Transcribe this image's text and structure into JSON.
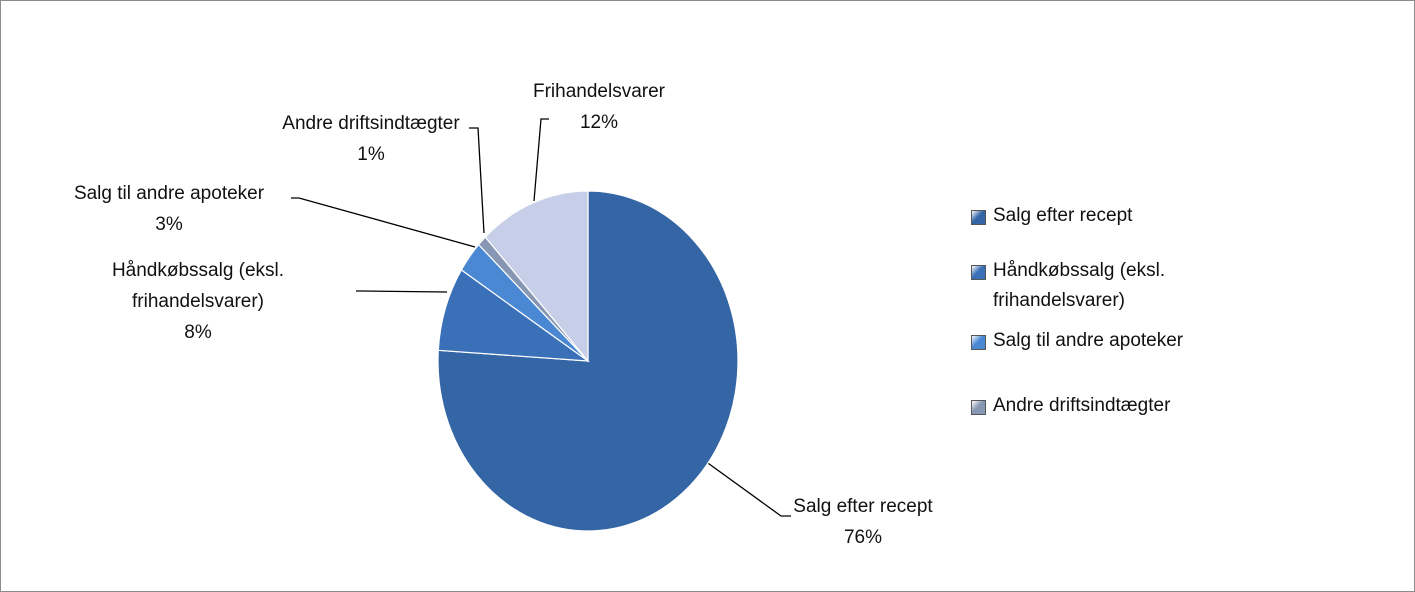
{
  "chart_data": {
    "type": "pie",
    "categories": [
      "Salg efter recept",
      "Håndkøbssalg (eksl. frihandelsvarer)",
      "Salg til andre apoteker",
      "Andre driftsindtægter",
      "Frihandelsvarer"
    ],
    "values": [
      76,
      8,
      3,
      1,
      12
    ],
    "value_labels": [
      "76%",
      "8%",
      "3%",
      "1%",
      "12%"
    ],
    "colors": [
      "#3466a6",
      "#3a70b8",
      "#4a88d4",
      "#8797b3",
      "#c7cfe8"
    ],
    "legend": {
      "position": "right",
      "entries": [
        "Salg efter recept",
        "Håndkøbssalg (eksl. frihandelsvarer)",
        "Salg til andre apoteker",
        "Andre driftsindtægter"
      ]
    }
  }
}
